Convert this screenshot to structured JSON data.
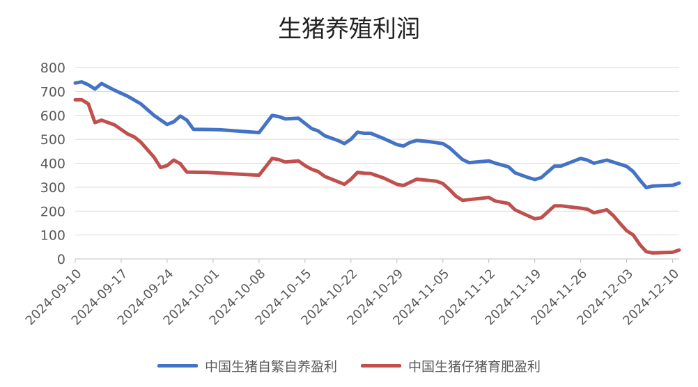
{
  "chart_data": {
    "type": "line",
    "title": "生猪养殖利润",
    "xlabel": "",
    "ylabel": "",
    "ylim": [
      0,
      800
    ],
    "yticks": [
      0,
      100,
      200,
      300,
      400,
      500,
      600,
      700,
      800
    ],
    "x_tick_labels": [
      "2024-09-10",
      "2024-09-17",
      "2024-09-24",
      "2024-10-01",
      "2024-10-08",
      "2024-10-15",
      "2024-10-22",
      "2024-10-29",
      "2024-11-05",
      "2024-11-12",
      "2024-11-19",
      "2024-11-26",
      "2024-12-03",
      "2024-12-10"
    ],
    "grid": "horizontal",
    "legend_position": "bottom",
    "series": [
      {
        "name": "中国生猪自繁自养盈利",
        "color": "#4472C4",
        "points": [
          [
            "2024-09-10",
            735
          ],
          [
            "2024-09-11",
            740
          ],
          [
            "2024-09-12",
            728
          ],
          [
            "2024-09-13",
            710
          ],
          [
            "2024-09-14",
            733
          ],
          [
            "2024-09-16",
            705
          ],
          [
            "2024-09-18",
            680
          ],
          [
            "2024-09-20",
            648
          ],
          [
            "2024-09-22",
            600
          ],
          [
            "2024-09-24",
            562
          ],
          [
            "2024-09-25",
            573
          ],
          [
            "2024-09-26",
            597
          ],
          [
            "2024-09-27",
            580
          ],
          [
            "2024-09-28",
            542
          ],
          [
            "2024-09-30",
            541
          ],
          [
            "2024-10-02",
            540
          ],
          [
            "2024-10-08",
            528
          ],
          [
            "2024-10-10",
            600
          ],
          [
            "2024-10-11",
            595
          ],
          [
            "2024-10-12",
            585
          ],
          [
            "2024-10-14",
            588
          ],
          [
            "2024-10-16",
            545
          ],
          [
            "2024-10-17",
            535
          ],
          [
            "2024-10-18",
            515
          ],
          [
            "2024-10-20",
            495
          ],
          [
            "2024-10-21",
            482
          ],
          [
            "2024-10-22",
            500
          ],
          [
            "2024-10-23",
            530
          ],
          [
            "2024-10-24",
            525
          ],
          [
            "2024-10-25",
            525
          ],
          [
            "2024-10-27",
            503
          ],
          [
            "2024-10-29",
            478
          ],
          [
            "2024-10-30",
            472
          ],
          [
            "2024-10-31",
            487
          ],
          [
            "2024-11-01",
            495
          ],
          [
            "2024-11-03",
            490
          ],
          [
            "2024-11-05",
            482
          ],
          [
            "2024-11-06",
            465
          ],
          [
            "2024-11-07",
            440
          ],
          [
            "2024-11-08",
            415
          ],
          [
            "2024-11-09",
            402
          ],
          [
            "2024-11-12",
            410
          ],
          [
            "2024-11-13",
            400
          ],
          [
            "2024-11-15",
            385
          ],
          [
            "2024-11-16",
            360
          ],
          [
            "2024-11-18",
            340
          ],
          [
            "2024-11-19",
            332
          ],
          [
            "2024-11-20",
            340
          ],
          [
            "2024-11-22",
            388
          ],
          [
            "2024-11-23",
            388
          ],
          [
            "2024-11-26",
            420
          ],
          [
            "2024-11-27",
            413
          ],
          [
            "2024-11-28",
            400
          ],
          [
            "2024-11-30",
            413
          ],
          [
            "2024-12-03",
            387
          ],
          [
            "2024-12-04",
            365
          ],
          [
            "2024-12-05",
            330
          ],
          [
            "2024-12-06",
            298
          ],
          [
            "2024-12-07",
            305
          ],
          [
            "2024-12-10",
            308
          ],
          [
            "2024-12-11",
            317
          ]
        ]
      },
      {
        "name": "中国生猪仔猪育肥盈利",
        "color": "#C0504D",
        "points": [
          [
            "2024-09-10",
            665
          ],
          [
            "2024-09-11",
            665
          ],
          [
            "2024-09-12",
            648
          ],
          [
            "2024-09-13",
            570
          ],
          [
            "2024-09-14",
            580
          ],
          [
            "2024-09-16",
            560
          ],
          [
            "2024-09-18",
            522
          ],
          [
            "2024-09-19",
            510
          ],
          [
            "2024-09-20",
            488
          ],
          [
            "2024-09-22",
            425
          ],
          [
            "2024-09-23",
            382
          ],
          [
            "2024-09-24",
            390
          ],
          [
            "2024-09-25",
            413
          ],
          [
            "2024-09-26",
            398
          ],
          [
            "2024-09-27",
            363
          ],
          [
            "2024-09-30",
            362
          ],
          [
            "2024-10-08",
            350
          ],
          [
            "2024-10-10",
            420
          ],
          [
            "2024-10-11",
            415
          ],
          [
            "2024-10-12",
            405
          ],
          [
            "2024-10-14",
            410
          ],
          [
            "2024-10-15",
            390
          ],
          [
            "2024-10-16",
            375
          ],
          [
            "2024-10-17",
            365
          ],
          [
            "2024-10-18",
            345
          ],
          [
            "2024-10-21",
            312
          ],
          [
            "2024-10-22",
            333
          ],
          [
            "2024-10-23",
            362
          ],
          [
            "2024-10-24",
            358
          ],
          [
            "2024-10-25",
            357
          ],
          [
            "2024-10-27",
            338
          ],
          [
            "2024-10-29",
            312
          ],
          [
            "2024-10-30",
            307
          ],
          [
            "2024-10-31",
            320
          ],
          [
            "2024-11-01",
            333
          ],
          [
            "2024-11-04",
            325
          ],
          [
            "2024-11-05",
            315
          ],
          [
            "2024-11-06",
            290
          ],
          [
            "2024-11-07",
            262
          ],
          [
            "2024-11-08",
            245
          ],
          [
            "2024-11-12",
            257
          ],
          [
            "2024-11-13",
            242
          ],
          [
            "2024-11-15",
            232
          ],
          [
            "2024-11-16",
            205
          ],
          [
            "2024-11-18",
            180
          ],
          [
            "2024-11-19",
            168
          ],
          [
            "2024-11-20",
            172
          ],
          [
            "2024-11-22",
            222
          ],
          [
            "2024-11-23",
            222
          ],
          [
            "2024-11-26",
            212
          ],
          [
            "2024-11-27",
            208
          ],
          [
            "2024-11-28",
            193
          ],
          [
            "2024-11-30",
            205
          ],
          [
            "2024-12-01",
            180
          ],
          [
            "2024-12-02",
            148
          ],
          [
            "2024-12-03",
            118
          ],
          [
            "2024-12-04",
            100
          ],
          [
            "2024-12-05",
            60
          ],
          [
            "2024-12-06",
            30
          ],
          [
            "2024-12-07",
            25
          ],
          [
            "2024-12-10",
            28
          ],
          [
            "2024-12-11",
            37
          ]
        ]
      }
    ]
  }
}
